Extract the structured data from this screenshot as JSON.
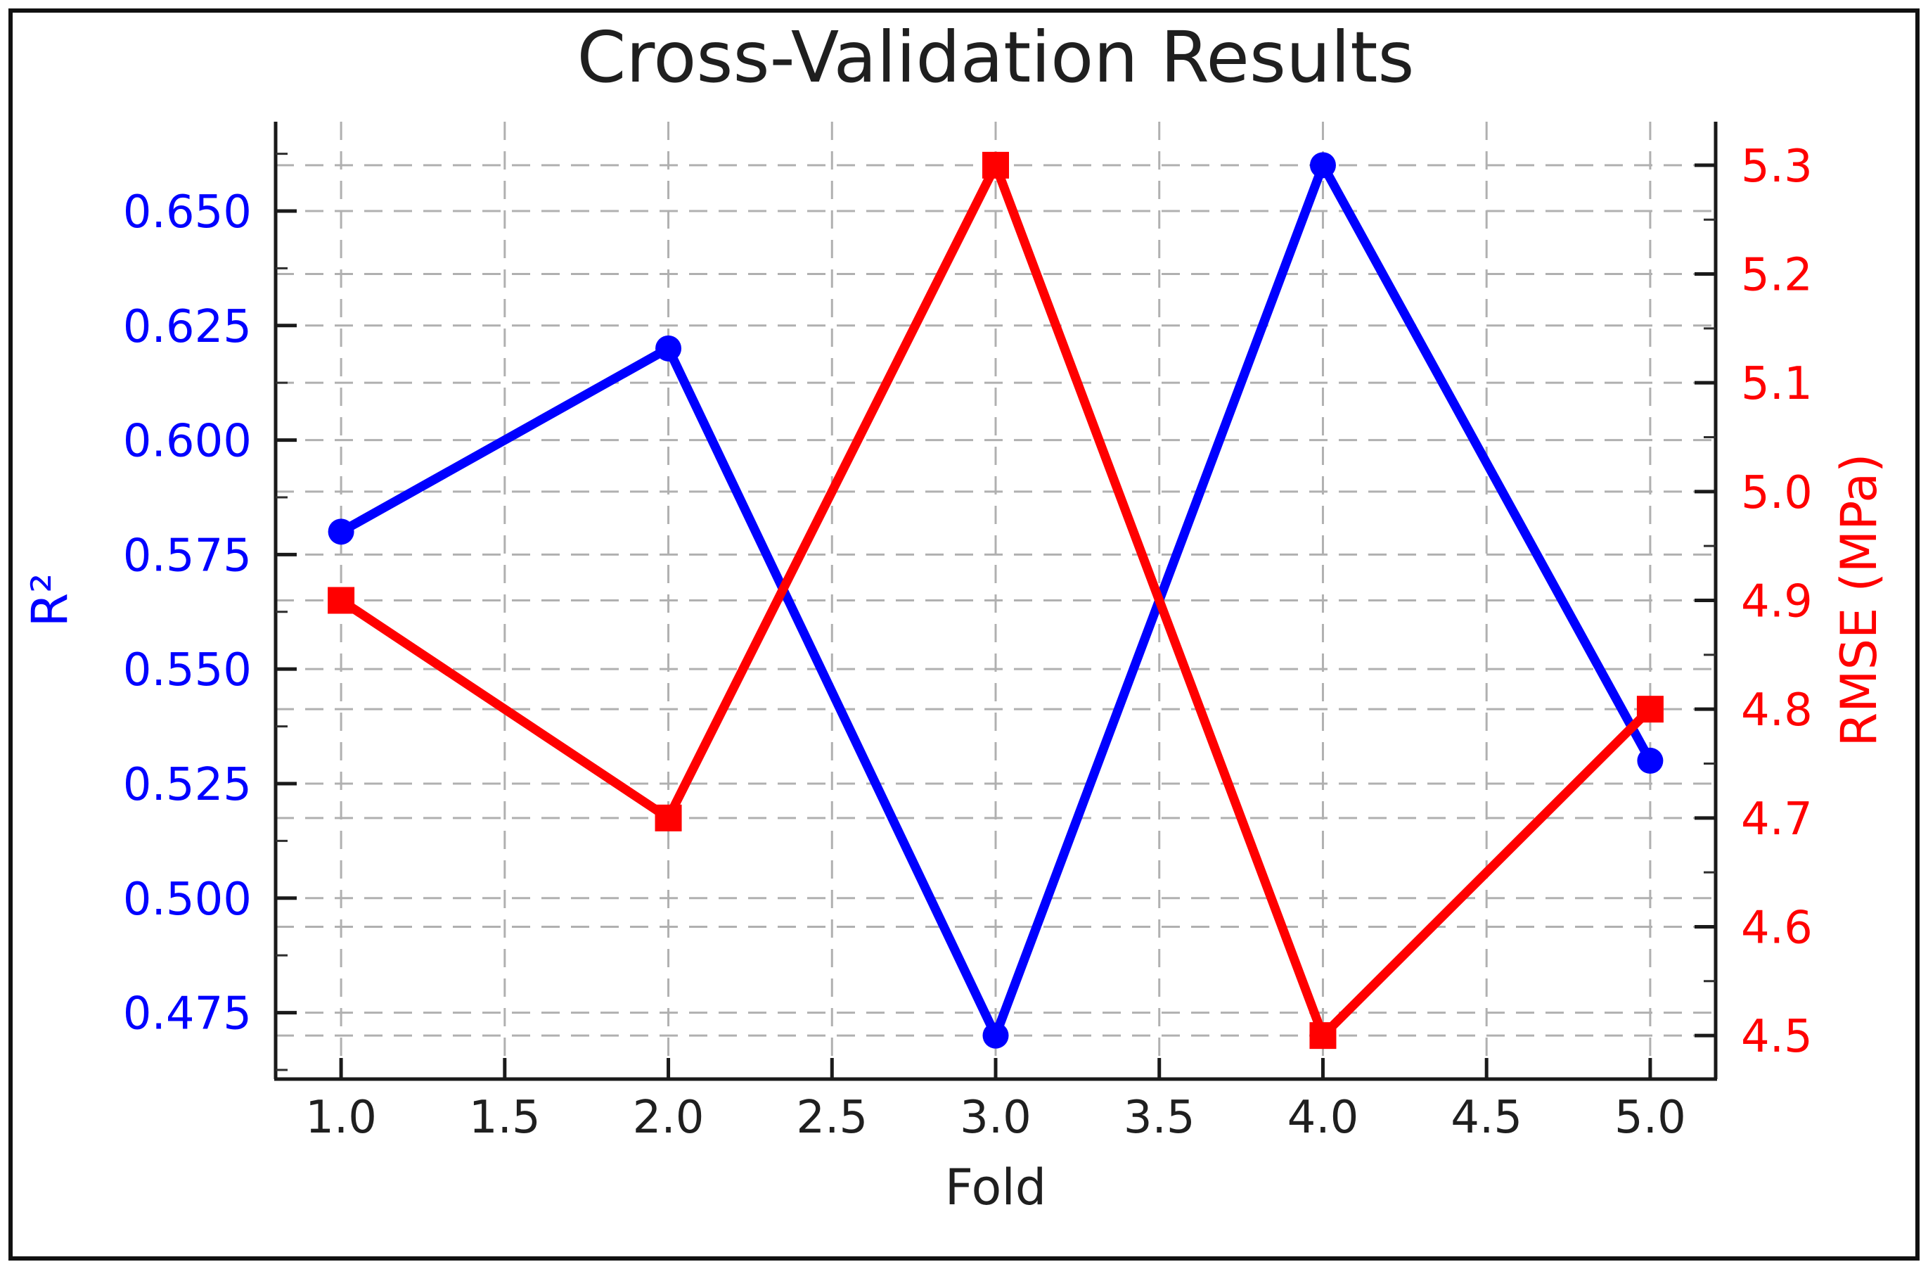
{
  "chart_data": {
    "type": "line",
    "title": "Cross-Validation Results",
    "xlabel": "Fold",
    "ylabel_left": "R²",
    "ylabel_right": "RMSE (MPa)",
    "x": [
      1,
      2,
      3,
      4,
      5
    ],
    "series": [
      {
        "name": "R²",
        "axis": "left",
        "color": "#0000ff",
        "marker": "circle",
        "values": [
          0.58,
          0.62,
          0.47,
          0.66,
          0.53
        ]
      },
      {
        "name": "RMSE (MPa)",
        "axis": "right",
        "color": "#ff0000",
        "marker": "square",
        "values": [
          4.9,
          4.7,
          5.3,
          4.5,
          4.8
        ]
      }
    ],
    "xlim": [
      0.8,
      5.2
    ],
    "ylim_left": [
      0.4605,
      0.6695
    ],
    "ylim_right": [
      4.46,
      5.34
    ],
    "x_tick_labels": [
      "1.0",
      "1.5",
      "2.0",
      "2.5",
      "3.0",
      "3.5",
      "4.0",
      "4.5",
      "5.0"
    ],
    "y_tick_labels_left": [
      "0.475",
      "0.500",
      "0.525",
      "0.550",
      "0.575",
      "0.600",
      "0.625",
      "0.650"
    ],
    "y_tick_labels_right": [
      "4.5",
      "4.6",
      "4.7",
      "4.8",
      "4.9",
      "5.0",
      "5.1",
      "5.2",
      "5.3"
    ],
    "grid": "dashed gray, major ticks of x axis and both y axes",
    "legend": "none",
    "colors": {
      "r2_series": "#0000ff",
      "rmse_series": "#ff0000",
      "grid": "#b0b0b0",
      "axis": "#1a1a1a",
      "title": "#1f1f1f",
      "x_tick_label": "#1f1f1f"
    }
  }
}
